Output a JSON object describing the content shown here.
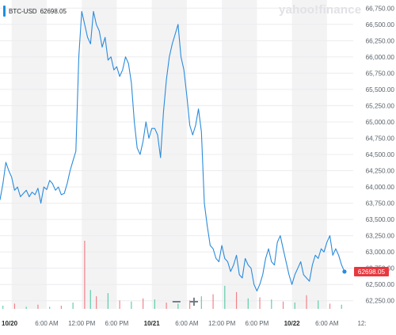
{
  "legend": {
    "symbol": "BTC-USD",
    "value": "62698.05",
    "color": "#1e8fe1"
  },
  "brand": "yahoo!finance",
  "zoom": {
    "minus": "−",
    "plus": "+"
  },
  "chart_data": {
    "type": "line",
    "y_range": [
      62125,
      66875
    ],
    "y_ticks": [
      {
        "value": 62250,
        "label": "62,250.00"
      },
      {
        "value": 62500,
        "label": "62,500.00"
      },
      {
        "value": 62750,
        "label": "62,750.00"
      },
      {
        "value": 63000,
        "label": "63,000.00"
      },
      {
        "value": 63250,
        "label": "63,250.00"
      },
      {
        "value": 63500,
        "label": "63,500.00"
      },
      {
        "value": 63750,
        "label": "63,750.00"
      },
      {
        "value": 64000,
        "label": "64,000.00"
      },
      {
        "value": 64250,
        "label": "64,250.00"
      },
      {
        "value": 64500,
        "label": "64,500.00"
      },
      {
        "value": 64750,
        "label": "64,750.00"
      },
      {
        "value": 65000,
        "label": "65,000.00"
      },
      {
        "value": 65250,
        "label": "65,250.00"
      },
      {
        "value": 65500,
        "label": "65,500.00"
      },
      {
        "value": 65750,
        "label": "65,750.00"
      },
      {
        "value": 66000,
        "label": "66,000.00"
      },
      {
        "value": 66250,
        "label": "66,250.00"
      },
      {
        "value": 66500,
        "label": "66,500.00"
      },
      {
        "value": 66750,
        "label": "66,750.00"
      }
    ],
    "x_range": [
      -2,
      58.5
    ],
    "x_ticks": [
      {
        "hour": 0,
        "label": "10/20",
        "bold": true
      },
      {
        "hour": 6,
        "label": "6:00 AM"
      },
      {
        "hour": 12,
        "label": "12:00 PM"
      },
      {
        "hour": 18,
        "label": "6:00 PM"
      },
      {
        "hour": 24,
        "label": "10/21",
        "bold": true
      },
      {
        "hour": 30,
        "label": "6:00 AM"
      },
      {
        "hour": 36,
        "label": "12:00 PM"
      },
      {
        "hour": 42,
        "label": "6:00 PM"
      },
      {
        "hour": 48,
        "label": "10/22",
        "bold": true
      },
      {
        "hour": 54,
        "label": "6:00 AM"
      },
      {
        "hour": 60,
        "label": "12:"
      }
    ],
    "last_price": 62698.05,
    "last_price_label": "62698.05",
    "line_color": "#2a8bdc",
    "band_color": "#f3f3f4",
    "series": {
      "x": [
        -2,
        -1.5,
        -1,
        -0.5,
        0,
        0.5,
        1,
        1.5,
        2,
        2.5,
        3,
        3.5,
        4,
        4.5,
        5,
        5.5,
        6,
        6.5,
        7,
        7.5,
        8,
        8.5,
        9,
        9.5,
        10,
        10.5,
        11,
        11.5,
        12,
        12.5,
        13,
        13.5,
        14,
        14.5,
        15,
        15.5,
        16,
        16.5,
        17,
        17.5,
        18,
        18.5,
        19,
        19.5,
        20,
        20.5,
        21,
        21.5,
        22,
        22.5,
        23,
        23.5,
        24,
        24.5,
        25,
        25.5,
        26,
        26.5,
        27,
        27.5,
        28,
        28.5,
        29,
        29.5,
        30,
        30.5,
        31,
        31.5,
        32,
        32.5,
        33,
        33.5,
        34,
        34.5,
        35,
        35.5,
        36,
        36.5,
        37,
        37.5,
        38,
        38.5,
        39,
        39.5,
        40,
        40.5,
        41,
        41.5,
        42,
        42.5,
        43,
        43.5,
        44,
        44.5,
        45,
        45.5,
        46,
        46.5,
        47,
        47.5,
        48,
        48.5,
        49,
        49.5,
        50,
        50.5,
        51,
        51.5,
        52,
        52.5,
        53,
        53.5,
        54,
        54.5,
        55,
        55.5,
        56,
        56.5,
        57
      ],
      "y": [
        63800,
        64050,
        64380,
        64250,
        64150,
        63950,
        64000,
        63850,
        63900,
        63950,
        63850,
        63920,
        63880,
        63980,
        63750,
        64000,
        63960,
        64100,
        64050,
        63950,
        64000,
        63880,
        63900,
        64050,
        64250,
        64400,
        64550,
        66000,
        66700,
        66500,
        66300,
        66200,
        66700,
        66500,
        66400,
        66150,
        66300,
        65950,
        66000,
        65800,
        65850,
        65700,
        65800,
        66000,
        65900,
        65600,
        65000,
        64600,
        64500,
        64700,
        65000,
        64750,
        64900,
        64900,
        64800,
        64450,
        65150,
        65650,
        66000,
        66200,
        66350,
        66500,
        66000,
        65800,
        65400,
        64950,
        64800,
        64950,
        65200,
        64850,
        63750,
        63400,
        63100,
        63050,
        62900,
        62850,
        63100,
        62900,
        62850,
        62700,
        62800,
        62950,
        62650,
        62600,
        62900,
        62800,
        62750,
        62500,
        62400,
        62500,
        62650,
        62900,
        63050,
        62850,
        62800,
        63150,
        63250,
        63050,
        62850,
        62650,
        62500,
        62650,
        62750,
        62850,
        62650,
        62600,
        62550,
        62800,
        62950,
        62900,
        63050,
        63000,
        63150,
        63250,
        62950,
        63050,
        62950,
        62800,
        62700
      ]
    },
    "volume": {
      "x": [
        -1.5,
        0.5,
        2.5,
        4.5,
        6.5,
        8.5,
        10.5,
        12.5,
        13.5,
        14.5,
        16.5,
        18.5,
        20.5,
        22.5,
        24.5,
        26.5,
        28.5,
        30.5,
        32.5,
        34.5,
        36.5,
        38.5,
        40.5,
        42.5,
        44.5,
        46.5,
        48.5,
        50.5,
        52.5,
        54.5,
        56.5
      ],
      "v": [
        3,
        5,
        2,
        4,
        2,
        3,
        6,
        65,
        18,
        12,
        15,
        8,
        7,
        10,
        9,
        6,
        5,
        8,
        12,
        14,
        22,
        16,
        10,
        11,
        9,
        7,
        6,
        13,
        8,
        5,
        4
      ]
    },
    "volume_colors": {
      "up": "#2ebf8f",
      "down": "#f05b64"
    }
  }
}
